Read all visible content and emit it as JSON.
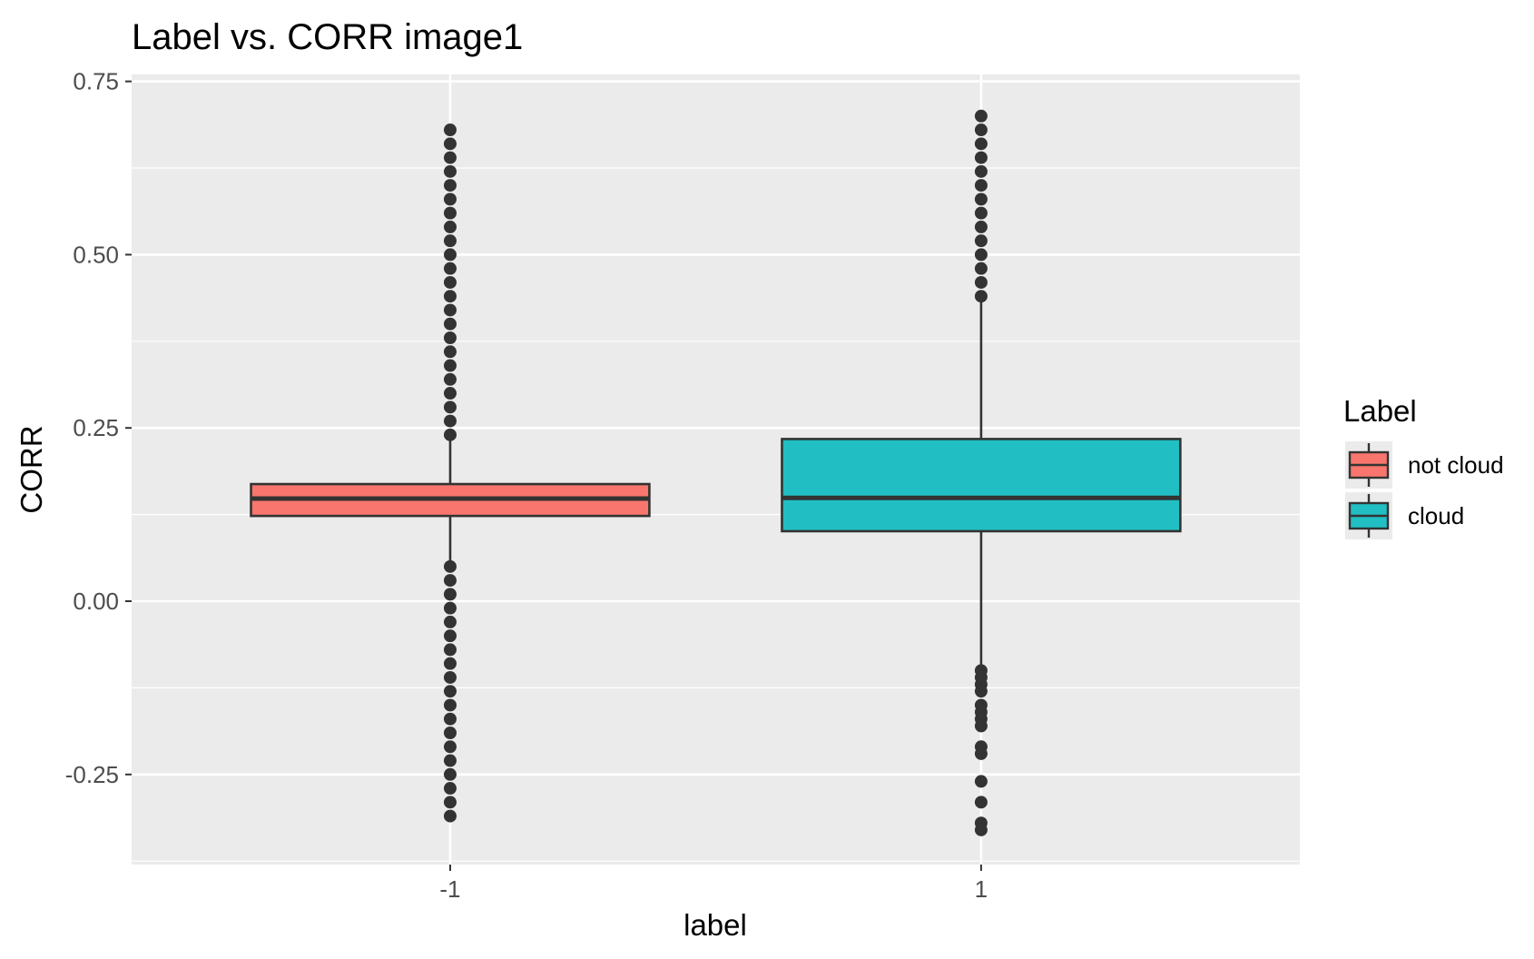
{
  "chart_data": {
    "type": "boxplot",
    "title": "Label vs. CORR image1",
    "xlabel": "label",
    "ylabel": "CORR",
    "categories": [
      "-1",
      "1"
    ],
    "ylim": [
      -0.38,
      0.76
    ],
    "yticks": [
      -0.25,
      0.0,
      0.25,
      0.5,
      0.75
    ],
    "ytick_labels": [
      "-0.25",
      "0.00",
      "0.25",
      "0.50",
      "0.75"
    ],
    "grid": true,
    "legend": {
      "title": "Label",
      "position": "right",
      "entries": [
        {
          "label": "not cloud",
          "color": "#F8766D"
        },
        {
          "label": "cloud",
          "color": "#21BFC4"
        }
      ]
    },
    "boxes": [
      {
        "category": "-1",
        "series": "not cloud",
        "color": "#F8766D",
        "q1": 0.123,
        "median": 0.148,
        "q3": 0.169,
        "whisker_low": 0.055,
        "whisker_high": 0.238,
        "outliers_high": [
          0.24,
          0.26,
          0.28,
          0.3,
          0.32,
          0.34,
          0.36,
          0.38,
          0.4,
          0.42,
          0.44,
          0.46,
          0.48,
          0.5,
          0.52,
          0.54,
          0.56,
          0.58,
          0.6,
          0.62,
          0.64,
          0.66,
          0.68
        ],
        "outliers_low": [
          0.05,
          0.03,
          0.01,
          -0.01,
          -0.03,
          -0.05,
          -0.07,
          -0.09,
          -0.11,
          -0.13,
          -0.15,
          -0.17,
          -0.19,
          -0.21,
          -0.23,
          -0.25,
          -0.27,
          -0.29,
          -0.31
        ]
      },
      {
        "category": "1",
        "series": "cloud",
        "color": "#21BFC4",
        "q1": 0.101,
        "median": 0.149,
        "q3": 0.234,
        "whisker_low": -0.1,
        "whisker_high": 0.432,
        "outliers_high": [
          0.44,
          0.46,
          0.48,
          0.5,
          0.52,
          0.54,
          0.56,
          0.58,
          0.6,
          0.62,
          0.64,
          0.66,
          0.68,
          0.7
        ],
        "outliers_low": [
          -0.1,
          -0.11,
          -0.12,
          -0.13,
          -0.15,
          -0.16,
          -0.17,
          -0.18,
          -0.21,
          -0.22,
          -0.26,
          -0.29,
          -0.32,
          -0.33
        ]
      }
    ],
    "colors": {
      "panel_background": "#EBEBEB",
      "grid_major": "#FFFFFF",
      "box_outline": "#333333",
      "outlier_point": "#333333"
    }
  }
}
